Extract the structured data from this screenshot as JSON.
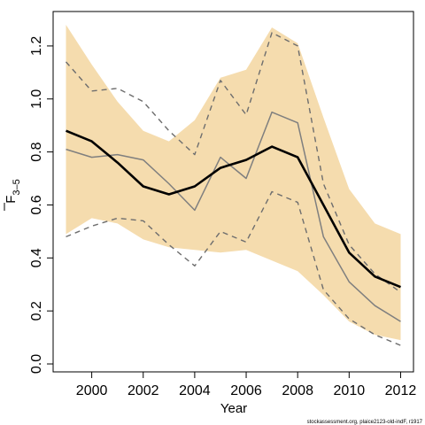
{
  "chart_data": {
    "type": "line",
    "xlabel": "Year",
    "ylabel": {
      "base": "F",
      "subscript": "3–5"
    },
    "xlim": [
      1998.5,
      2012.5
    ],
    "ylim": [
      -0.03,
      1.33
    ],
    "x_ticks": [
      2000,
      2002,
      2004,
      2006,
      2008,
      2010,
      2012
    ],
    "y_ticks": [
      0.0,
      0.2,
      0.4,
      0.6,
      0.8,
      1.0,
      1.2
    ],
    "y_tick_labels": [
      "0.0",
      "0.2",
      "0.4",
      "0.6",
      "0.8",
      "1.0",
      "1.2"
    ],
    "x": [
      1999,
      2000,
      2001,
      2002,
      2003,
      2004,
      2005,
      2006,
      2007,
      2008,
      2009,
      2010,
      2011,
      2012
    ],
    "band": {
      "lower": [
        0.49,
        0.55,
        0.53,
        0.47,
        0.44,
        0.43,
        0.42,
        0.43,
        0.39,
        0.35,
        0.26,
        0.16,
        0.11,
        0.09
      ],
      "upper": [
        1.28,
        1.13,
        0.99,
        0.88,
        0.84,
        0.92,
        1.08,
        1.11,
        1.27,
        1.21,
        0.93,
        0.66,
        0.53,
        0.49
      ]
    },
    "series": [
      {
        "style": "bold",
        "values": [
          0.88,
          0.84,
          0.76,
          0.67,
          0.64,
          0.67,
          0.74,
          0.77,
          0.82,
          0.78,
          0.6,
          0.42,
          0.33,
          0.29
        ]
      },
      {
        "style": "thin",
        "values": [
          0.81,
          0.78,
          0.79,
          0.77,
          0.68,
          0.58,
          0.78,
          0.7,
          0.95,
          0.91,
          0.48,
          0.31,
          0.22,
          0.16
        ]
      },
      {
        "style": "dashed-upper",
        "values": [
          1.14,
          1.03,
          1.04,
          0.99,
          0.88,
          0.79,
          1.07,
          0.94,
          1.25,
          1.2,
          0.68,
          0.45,
          0.34,
          0.27
        ]
      },
      {
        "style": "dashed-lower",
        "values": [
          0.48,
          0.52,
          0.55,
          0.54,
          0.45,
          0.37,
          0.5,
          0.46,
          0.65,
          0.61,
          0.28,
          0.17,
          0.11,
          0.07
        ]
      }
    ],
    "colors": {
      "band": "#f5dcae",
      "bold": "#000000",
      "thin": "#7f7f7f",
      "dashed": "#6e6e6e"
    },
    "grid": false
  },
  "footer": {
    "source": "stockassessment.org, plaice2123-old-indF, r1917"
  }
}
